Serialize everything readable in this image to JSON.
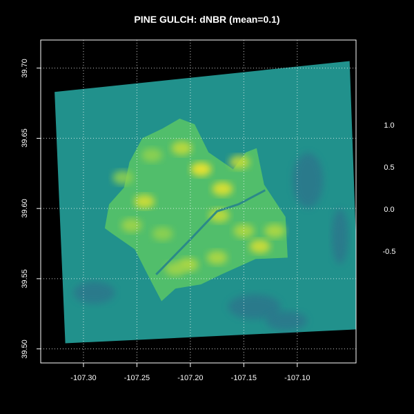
{
  "title": "PINE GULCH: dNBR (mean=0.1)",
  "colors": {
    "background": "#000000",
    "text": "#ffffff",
    "grid": "#ffffff",
    "frame": "#ffffff"
  },
  "chart_data": {
    "type": "heatmap",
    "title": "PINE GULCH: dNBR (mean=0.1)",
    "xlabel": "",
    "ylabel": "",
    "xlim": [
      -107.34,
      -107.045
    ],
    "ylim": [
      39.49,
      39.72
    ],
    "xticks": [
      "-107.30",
      "-107.25",
      "-107.20",
      "-107.15",
      "-107.10"
    ],
    "yticks": [
      "39.50",
      "39.55",
      "39.60",
      "39.65",
      "39.70"
    ],
    "grid": true,
    "colormap": "viridis",
    "legend": {
      "position": "right",
      "ticks": [
        "1.0",
        "0.5",
        "0.0",
        "-0.5"
      ]
    },
    "scene_extent": {
      "corners_lonlat": [
        [
          -107.327,
          39.683
        ],
        [
          -107.051,
          39.705
        ],
        [
          -107.042,
          39.514
        ],
        [
          -107.317,
          39.504
        ]
      ],
      "fill_value": 0.1
    },
    "burn_area": {
      "outline_lonlat": [
        [
          -107.262,
          39.615
        ],
        [
          -107.257,
          39.633
        ],
        [
          -107.245,
          39.65
        ],
        [
          -107.226,
          39.657
        ],
        [
          -107.21,
          39.664
        ],
        [
          -107.196,
          39.66
        ],
        [
          -107.183,
          39.64
        ],
        [
          -107.16,
          39.628
        ],
        [
          -107.148,
          39.64
        ],
        [
          -107.138,
          39.643
        ],
        [
          -107.131,
          39.617
        ],
        [
          -107.111,
          39.594
        ],
        [
          -107.109,
          39.565
        ],
        [
          -107.139,
          39.564
        ],
        [
          -107.171,
          39.553
        ],
        [
          -107.19,
          39.546
        ],
        [
          -107.214,
          39.543
        ],
        [
          -107.227,
          39.534
        ],
        [
          -107.238,
          39.55
        ],
        [
          -107.252,
          39.571
        ],
        [
          -107.273,
          39.582
        ],
        [
          -107.28,
          39.586
        ],
        [
          -107.276,
          39.603
        ]
      ],
      "fill_value": 0.5
    },
    "hotspots": [
      {
        "lon": -107.19,
        "lat": 39.628,
        "value": 1.0
      },
      {
        "lon": -107.243,
        "lat": 39.605,
        "value": 0.9
      },
      {
        "lon": -107.173,
        "lat": 39.595,
        "value": 0.85
      },
      {
        "lon": -107.135,
        "lat": 39.573,
        "value": 0.9
      },
      {
        "lon": -107.15,
        "lat": 39.584,
        "value": 0.8
      },
      {
        "lon": -107.208,
        "lat": 39.643,
        "value": 0.85
      },
      {
        "lon": -107.202,
        "lat": 39.56,
        "value": 0.8
      },
      {
        "lon": -107.255,
        "lat": 39.588,
        "value": 0.75
      },
      {
        "lon": -107.226,
        "lat": 39.582,
        "value": 0.7
      },
      {
        "lon": -107.175,
        "lat": 39.565,
        "value": 0.8
      },
      {
        "lon": -107.17,
        "lat": 39.614,
        "value": 0.95
      },
      {
        "lon": -107.263,
        "lat": 39.622,
        "value": 0.7
      },
      {
        "lon": -107.236,
        "lat": 39.638,
        "value": 0.7
      },
      {
        "lon": -107.121,
        "lat": 39.584,
        "value": 0.8
      },
      {
        "lon": -107.154,
        "lat": 39.633,
        "value": 0.85
      },
      {
        "lon": -107.214,
        "lat": 39.557,
        "value": 0.75
      }
    ],
    "road_line": {
      "points_lonlat": [
        [
          -107.232,
          39.553
        ],
        [
          -107.2,
          39.578
        ],
        [
          -107.175,
          39.598
        ],
        [
          -107.155,
          39.603
        ],
        [
          -107.13,
          39.613
        ]
      ],
      "value": 0.0
    },
    "fill_value_mean": 0.1
  }
}
